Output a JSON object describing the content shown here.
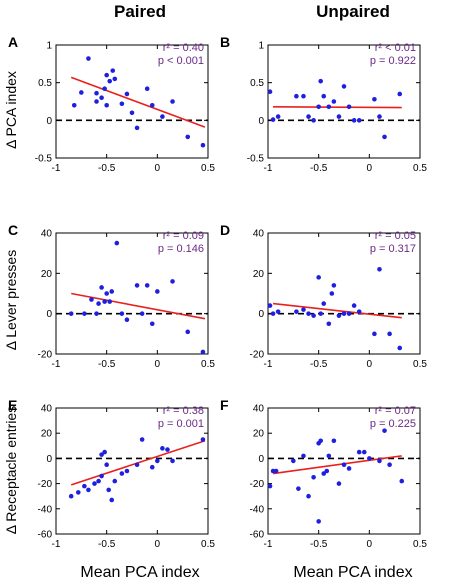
{
  "columns": [
    "Paired",
    "Unpaired"
  ],
  "xlabels": [
    "Mean PCA index",
    "Mean PCA index"
  ],
  "ylabels": [
    "Δ PCA index",
    "Δ Lever presses",
    "Δ Receptacle entries"
  ],
  "colors": {
    "points": "#1f1fe0",
    "fit": "#e8211e",
    "zero": "#000000",
    "stat": "#6b2a87"
  },
  "chart_data": [
    {
      "panel": "A",
      "type": "scatter",
      "title": "",
      "xlim": [
        -1,
        0.5
      ],
      "xticks": [
        -1,
        -0.5,
        0,
        0.5
      ],
      "xticklabels": [
        "-1",
        "-0.5",
        "0",
        "0.5"
      ],
      "ylim": [
        -0.5,
        1
      ],
      "yticks": [
        -0.5,
        0,
        0.5,
        1
      ],
      "yticklabels": [
        "-0.5",
        "0",
        "0.5",
        "1"
      ],
      "stats": [
        "r² = 0.40",
        "p < 0.001"
      ],
      "fit": [
        [
          -0.85,
          0.57
        ],
        [
          0.47,
          -0.09
        ]
      ],
      "points": [
        [
          -0.82,
          0.2
        ],
        [
          -0.75,
          0.37
        ],
        [
          -0.68,
          0.82
        ],
        [
          -0.6,
          0.36
        ],
        [
          -0.6,
          0.25
        ],
        [
          -0.55,
          0.3
        ],
        [
          -0.52,
          0.42
        ],
        [
          -0.5,
          0.6
        ],
        [
          -0.5,
          0.2
        ],
        [
          -0.47,
          0.52
        ],
        [
          -0.44,
          0.66
        ],
        [
          -0.42,
          0.55
        ],
        [
          -0.35,
          0.22
        ],
        [
          -0.3,
          0.35
        ],
        [
          -0.25,
          0.1
        ],
        [
          -0.2,
          -0.1
        ],
        [
          -0.1,
          0.42
        ],
        [
          -0.05,
          0.2
        ],
        [
          0.05,
          0.05
        ],
        [
          0.15,
          0.25
        ],
        [
          0.3,
          -0.22
        ],
        [
          0.45,
          -0.33
        ]
      ]
    },
    {
      "panel": "B",
      "type": "scatter",
      "title": "",
      "xlim": [
        -1,
        0.5
      ],
      "xticks": [
        -1,
        -0.5,
        0,
        0.5
      ],
      "xticklabels": [
        "-1",
        "-0.5",
        "0",
        "0.5"
      ],
      "ylim": [
        -0.5,
        1
      ],
      "yticks": [
        -0.5,
        0,
        0.5,
        1
      ],
      "yticklabels": [
        "-0.5",
        "0",
        "0.5",
        "1"
      ],
      "stats": [
        "r² < 0.01",
        "p = 0.922"
      ],
      "fit": [
        [
          -0.95,
          0.18
        ],
        [
          0.32,
          0.17
        ]
      ],
      "points": [
        [
          -0.98,
          0.38
        ],
        [
          -0.95,
          0.01
        ],
        [
          -0.9,
          0.05
        ],
        [
          -0.72,
          0.32
        ],
        [
          -0.65,
          0.32
        ],
        [
          -0.6,
          0.05
        ],
        [
          -0.55,
          0.0
        ],
        [
          -0.5,
          0.18
        ],
        [
          -0.48,
          0.52
        ],
        [
          -0.45,
          0.32
        ],
        [
          -0.4,
          0.18
        ],
        [
          -0.35,
          0.25
        ],
        [
          -0.3,
          0.05
        ],
        [
          -0.25,
          0.45
        ],
        [
          -0.2,
          0.18
        ],
        [
          -0.15,
          0.0
        ],
        [
          -0.1,
          0.0
        ],
        [
          0.05,
          0.28
        ],
        [
          0.1,
          0.05
        ],
        [
          0.15,
          -0.22
        ],
        [
          0.3,
          0.35
        ]
      ]
    },
    {
      "panel": "C",
      "type": "scatter",
      "title": "",
      "xlim": [
        -1,
        0.5
      ],
      "xticks": [
        -1,
        -0.5,
        0,
        0.5
      ],
      "xticklabels": [
        "-1",
        "-0.5",
        "0",
        "0.5"
      ],
      "ylim": [
        -20,
        40
      ],
      "yticks": [
        -20,
        0,
        20,
        40
      ],
      "yticklabels": [
        "-20",
        "0",
        "20",
        "40"
      ],
      "stats": [
        "r² = 0.09",
        "p = 0.146"
      ],
      "fit": [
        [
          -0.85,
          10
        ],
        [
          0.47,
          -2.5
        ]
      ],
      "points": [
        [
          -0.85,
          0
        ],
        [
          -0.72,
          0
        ],
        [
          -0.65,
          7
        ],
        [
          -0.6,
          0
        ],
        [
          -0.58,
          5
        ],
        [
          -0.55,
          13
        ],
        [
          -0.52,
          6
        ],
        [
          -0.5,
          10
        ],
        [
          -0.47,
          6
        ],
        [
          -0.45,
          11
        ],
        [
          -0.4,
          35
        ],
        [
          -0.35,
          0
        ],
        [
          -0.3,
          -3
        ],
        [
          -0.2,
          14
        ],
        [
          -0.15,
          0
        ],
        [
          -0.1,
          14
        ],
        [
          -0.05,
          -5
        ],
        [
          0.0,
          11
        ],
        [
          0.15,
          16
        ],
        [
          0.3,
          -9
        ],
        [
          0.45,
          -19
        ]
      ]
    },
    {
      "panel": "D",
      "type": "scatter",
      "title": "",
      "xlim": [
        -1,
        0.5
      ],
      "xticks": [
        -1,
        -0.5,
        0,
        0.5
      ],
      "xticklabels": [
        "-1",
        "-0.5",
        "0",
        "0.5"
      ],
      "ylim": [
        -20,
        40
      ],
      "yticks": [
        -20,
        0,
        20,
        40
      ],
      "yticklabels": [
        "-20",
        "0",
        "20",
        "40"
      ],
      "stats": [
        "r² = 0.05",
        "p = 0.317"
      ],
      "fit": [
        [
          -0.95,
          5
        ],
        [
          0.32,
          -2
        ]
      ],
      "points": [
        [
          -0.98,
          4
        ],
        [
          -0.95,
          0
        ],
        [
          -0.9,
          1
        ],
        [
          -0.72,
          1
        ],
        [
          -0.65,
          2
        ],
        [
          -0.6,
          0
        ],
        [
          -0.55,
          -1
        ],
        [
          -0.5,
          18
        ],
        [
          -0.48,
          0
        ],
        [
          -0.45,
          5
        ],
        [
          -0.4,
          -5
        ],
        [
          -0.37,
          10
        ],
        [
          -0.35,
          14
        ],
        [
          -0.3,
          -1
        ],
        [
          -0.25,
          0
        ],
        [
          -0.2,
          0
        ],
        [
          -0.15,
          4
        ],
        [
          -0.1,
          1
        ],
        [
          0.05,
          -10
        ],
        [
          0.1,
          22
        ],
        [
          0.2,
          -10
        ],
        [
          0.3,
          -17
        ]
      ]
    },
    {
      "panel": "E",
      "type": "scatter",
      "title": "",
      "xlim": [
        -1,
        0.5
      ],
      "xticks": [
        -1,
        -0.5,
        0,
        0.5
      ],
      "xticklabels": [
        "-1",
        "-0.5",
        "0",
        "0.5"
      ],
      "ylim": [
        -60,
        40
      ],
      "yticks": [
        -60,
        -40,
        -20,
        0,
        20,
        40
      ],
      "yticklabels": [
        "-60",
        "-40",
        "-20",
        "0",
        "20",
        "40"
      ],
      "stats": [
        "r² = 0.38",
        "p = 0.001"
      ],
      "fit": [
        [
          -0.85,
          -21
        ],
        [
          0.47,
          14
        ]
      ],
      "points": [
        [
          -0.85,
          -30
        ],
        [
          -0.78,
          -27
        ],
        [
          -0.72,
          -22
        ],
        [
          -0.68,
          -25
        ],
        [
          -0.62,
          -20
        ],
        [
          -0.58,
          -18
        ],
        [
          -0.55,
          -14
        ],
        [
          -0.55,
          3
        ],
        [
          -0.52,
          5
        ],
        [
          -0.5,
          -5
        ],
        [
          -0.48,
          -25
        ],
        [
          -0.45,
          -33
        ],
        [
          -0.42,
          -18
        ],
        [
          -0.35,
          -12
        ],
        [
          -0.3,
          -10
        ],
        [
          -0.2,
          -5
        ],
        [
          -0.15,
          15
        ],
        [
          -0.05,
          -7
        ],
        [
          0.0,
          -2
        ],
        [
          0.05,
          8
        ],
        [
          0.1,
          7
        ],
        [
          0.15,
          -2
        ],
        [
          0.45,
          15
        ]
      ]
    },
    {
      "panel": "F",
      "type": "scatter",
      "title": "",
      "xlim": [
        -1,
        0.5
      ],
      "xticks": [
        -1,
        -0.5,
        0,
        0.5
      ],
      "xticklabels": [
        "-1",
        "-0.5",
        "0",
        "0.5"
      ],
      "ylim": [
        -60,
        40
      ],
      "yticks": [
        -60,
        -40,
        -20,
        0,
        20,
        40
      ],
      "yticklabels": [
        "-60",
        "-40",
        "-20",
        "0",
        "20",
        "40"
      ],
      "stats": [
        "r² = 0.07",
        "p = 0.225"
      ],
      "fit": [
        [
          -0.95,
          -12
        ],
        [
          0.32,
          2
        ]
      ],
      "points": [
        [
          -0.98,
          -22
        ],
        [
          -0.95,
          -10
        ],
        [
          -0.92,
          -10
        ],
        [
          -0.75,
          -2
        ],
        [
          -0.7,
          -24
        ],
        [
          -0.65,
          2
        ],
        [
          -0.6,
          -30
        ],
        [
          -0.55,
          -15
        ],
        [
          -0.5,
          12
        ],
        [
          -0.48,
          14
        ],
        [
          -0.45,
          -12
        ],
        [
          -0.42,
          -10
        ],
        [
          -0.4,
          2
        ],
        [
          -0.35,
          14
        ],
        [
          -0.3,
          -20
        ],
        [
          -0.25,
          -5
        ],
        [
          -0.2,
          -8
        ],
        [
          -0.1,
          5
        ],
        [
          -0.05,
          5
        ],
        [
          0.0,
          0
        ],
        [
          0.1,
          -2
        ],
        [
          0.15,
          22
        ],
        [
          0.2,
          -5
        ],
        [
          0.32,
          -18
        ],
        [
          -0.5,
          -50
        ]
      ]
    }
  ]
}
